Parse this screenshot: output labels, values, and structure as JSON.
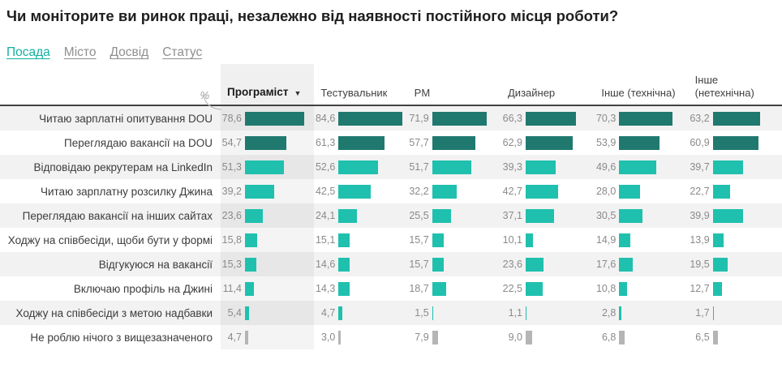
{
  "title": "Чи моніторите ви ринок праці, незалежно від наявності постійного місця роботи?",
  "tabs": [
    {
      "label": "Посада",
      "active": true
    },
    {
      "label": "Місто",
      "active": false
    },
    {
      "label": "Досвід",
      "active": false
    },
    {
      "label": "Статус",
      "active": false
    }
  ],
  "colors": {
    "bar_dark": "#20796f",
    "bar_light": "#1fc0ae",
    "bar_gray": "#b5b5b5",
    "accent": "#12b0a0",
    "accent_light": "#b5e9e2"
  },
  "chart_data": {
    "type": "bar",
    "orientation": "horizontal",
    "unit": "%",
    "selected_column": "Програміст",
    "categories": [
      "Читаю зарплатні опитування DOU",
      "Переглядаю вакансії на DOU",
      "Відповідаю рекрутерам на LinkedIn",
      "Читаю зарплатну розсилку Джина",
      "Переглядаю вакансії на інших сайтах",
      "Ходжу на співбесіди, щоби бути у формі",
      "Відгукуюся на вакансії",
      "Включаю профіль на Джині",
      "Ходжу на співбесіди з метою надбавки",
      "Не роблю нічого з вищезазначеного"
    ],
    "series": [
      {
        "name": "Програміст",
        "selected": true,
        "values": [
          78.6,
          54.7,
          51.3,
          39.2,
          23.6,
          15.8,
          15.3,
          11.4,
          5.4,
          4.7
        ]
      },
      {
        "name": "Тестувальник",
        "selected": false,
        "values": [
          84.6,
          61.3,
          52.6,
          42.5,
          24.1,
          15.1,
          14.6,
          14.3,
          4.7,
          3.0
        ]
      },
      {
        "name": "PM",
        "selected": false,
        "values": [
          71.9,
          57.7,
          51.7,
          32.2,
          25.5,
          15.7,
          15.7,
          18.7,
          1.5,
          7.9
        ]
      },
      {
        "name": "Дизайнер",
        "selected": false,
        "values": [
          66.3,
          62.9,
          39.3,
          42.7,
          37.1,
          10.1,
          23.6,
          22.5,
          1.1,
          9.0
        ]
      },
      {
        "name": "Інше (технічна)",
        "selected": false,
        "values": [
          70.3,
          53.9,
          49.6,
          28.0,
          30.5,
          14.9,
          17.6,
          10.8,
          2.8,
          6.8
        ]
      },
      {
        "name": "Інше (нетехнічна)",
        "selected": false,
        "values": [
          63.2,
          60.9,
          39.7,
          22.7,
          39.9,
          13.9,
          19.5,
          12.7,
          1.7,
          6.5
        ]
      }
    ],
    "row_styles": [
      "dark",
      "dark",
      "light",
      "light",
      "light",
      "light",
      "light",
      "light",
      "light",
      "gray"
    ],
    "xlim": [
      0,
      90
    ],
    "value_format": "one-decimal-comma"
  }
}
